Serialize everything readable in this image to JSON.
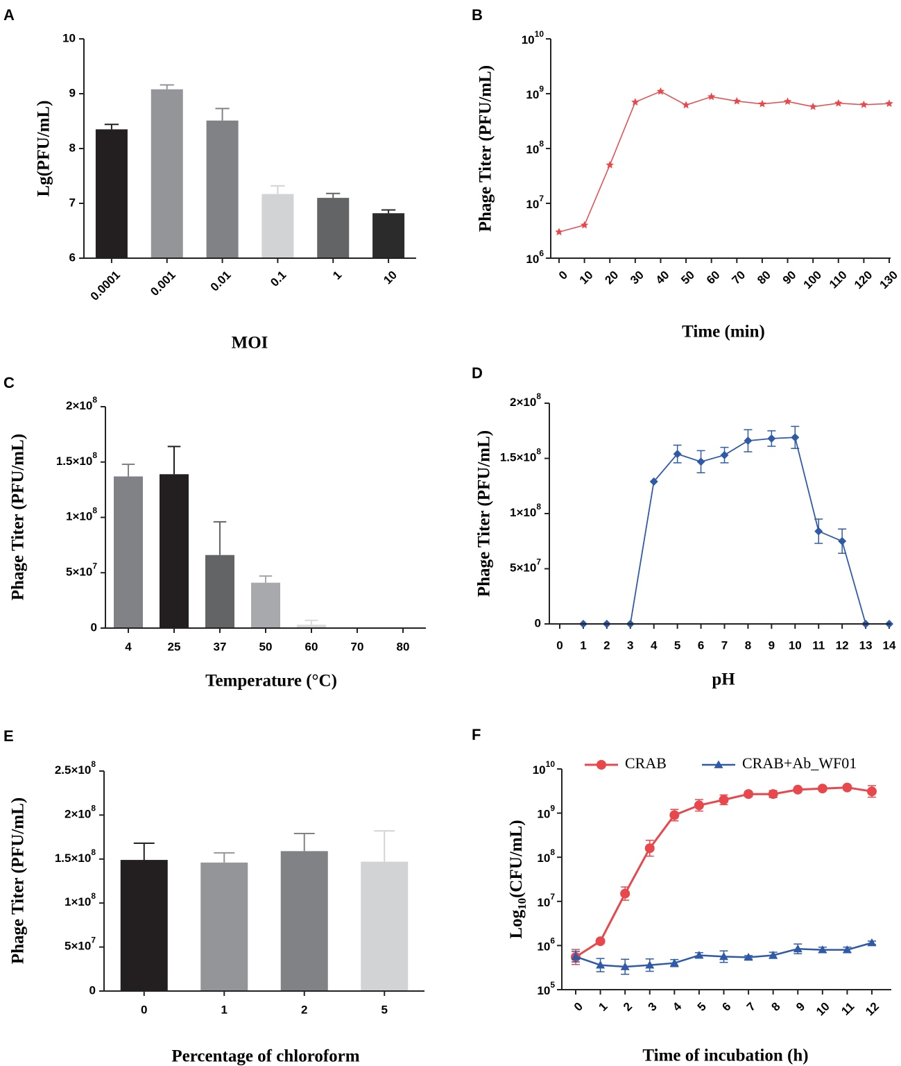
{
  "figure": {
    "panels": [
      {
        "id": "A",
        "chart_data": {
          "type": "bar",
          "title": "",
          "xlabel": "MOI",
          "ylabel": "Lg(PFU/mL)",
          "ylim": [
            6,
            10
          ],
          "yticks": [
            6,
            7,
            8,
            9,
            10
          ],
          "ytick_labels": [
            "6",
            "7",
            "8",
            "9",
            "10"
          ],
          "categories": [
            "0.0001",
            "0.001",
            "0.01",
            "0.1",
            "1",
            "10"
          ],
          "values": [
            8.35,
            9.08,
            8.51,
            7.17,
            7.1,
            6.82
          ],
          "errors": [
            0.09,
            0.08,
            0.22,
            0.15,
            0.08,
            0.06
          ],
          "colors": [
            "#231f20",
            "#939598",
            "#808285",
            "#d1d3d4",
            "#636466",
            "#2b2b2b"
          ]
        }
      },
      {
        "id": "B",
        "chart_data": {
          "type": "line",
          "title": "",
          "xlabel": "Time (min)",
          "ylabel": "Phage Titer (PFU/mL)",
          "yscale": "log",
          "ylim": [
            1000000,
            10000000000
          ],
          "ytick_exponents": [
            6,
            7,
            8,
            9,
            10
          ],
          "x": [
            0,
            10,
            20,
            30,
            40,
            50,
            60,
            70,
            80,
            90,
            100,
            110,
            120,
            130
          ],
          "values": [
            3000000,
            4000000,
            50000000,
            700000000,
            1100000000,
            620000000,
            880000000,
            730000000,
            650000000,
            720000000,
            580000000,
            670000000,
            630000000,
            660000000
          ],
          "color": "#e8474b",
          "marker": "star"
        }
      },
      {
        "id": "C",
        "chart_data": {
          "type": "bar",
          "title": "",
          "xlabel": "Temperature (°C)",
          "ylabel": "Phage Titer (PFU/mL)",
          "ylim": [
            0,
            200000000
          ],
          "yticks": [
            0,
            50000000,
            100000000,
            150000000,
            200000000
          ],
          "ytick_labels": [
            "0",
            "5×10^7",
            "1×10^8",
            "1.5×10^8",
            "2×10^8"
          ],
          "categories": [
            "4",
            "25",
            "37",
            "50",
            "60",
            "70",
            "80"
          ],
          "values": [
            137000000,
            139000000,
            66000000,
            41000000,
            3000000,
            0,
            0
          ],
          "errors": [
            11000000,
            25000000,
            30000000,
            6000000,
            4000000,
            0,
            0
          ],
          "colors": [
            "#808285",
            "#231f20",
            "#636466",
            "#a7a9ac",
            "#d9d9d9",
            "#d9d9d9",
            "#d9d9d9"
          ]
        }
      },
      {
        "id": "D",
        "chart_data": {
          "type": "line",
          "title": "",
          "xlabel": "pH",
          "ylabel": "Phage Titer (PFU/mL)",
          "ylim": [
            0,
            200000000
          ],
          "yticks": [
            0,
            50000000,
            100000000,
            150000000,
            200000000
          ],
          "ytick_labels": [
            "0",
            "5×10^7",
            "1×10^8",
            "1.5×10^8",
            "2×10^8"
          ],
          "xlim": [
            0,
            14
          ],
          "x": [
            1,
            2,
            3,
            4,
            5,
            6,
            7,
            8,
            9,
            10,
            11,
            12,
            13,
            14
          ],
          "values": [
            0,
            0,
            0,
            129000000,
            154000000,
            147000000,
            153000000,
            166000000,
            168000000,
            169000000,
            84000000,
            75000000,
            0,
            0
          ],
          "errors": [
            0,
            0,
            0,
            0,
            8000000,
            10000000,
            7000000,
            10000000,
            7000000,
            10000000,
            11000000,
            11000000,
            0,
            0
          ],
          "color": "#2e5aa8",
          "marker": "diamond"
        }
      },
      {
        "id": "E",
        "chart_data": {
          "type": "bar",
          "title": "",
          "xlabel": "Percentage of chloroform",
          "ylabel": "Phage Titer (PFU/mL)",
          "ylim": [
            0,
            250000000
          ],
          "yticks": [
            0,
            50000000,
            100000000,
            150000000,
            200000000,
            250000000
          ],
          "ytick_labels": [
            "0",
            "5×10^7",
            "1×10^8",
            "1.5×10^8",
            "2×10^8",
            "2.5×10^8"
          ],
          "categories": [
            "0",
            "1",
            "2",
            "5"
          ],
          "values": [
            149000000,
            146000000,
            159000000,
            147000000
          ],
          "errors": [
            19000000,
            11000000,
            20000000,
            35000000
          ],
          "colors": [
            "#231f20",
            "#939598",
            "#808285",
            "#d1d3d4"
          ]
        }
      },
      {
        "id": "F",
        "chart_data": {
          "type": "line",
          "title": "",
          "xlabel": "Time of incubation (h)",
          "ylabel": "Log10(CFU/mL)",
          "yscale": "log",
          "ylim": [
            100000,
            10000000000
          ],
          "ytick_exponents": [
            5,
            6,
            7,
            8,
            9,
            10
          ],
          "x": [
            0,
            1,
            2,
            3,
            4,
            5,
            6,
            7,
            8,
            9,
            10,
            11,
            12
          ],
          "legend_position": "top",
          "series": [
            {
              "name": "CRAB",
              "color": "#e8474b",
              "marker": "circle",
              "values": [
                550000,
                1250000,
                15000000,
                160000000,
                900000000,
                1500000000,
                2000000000,
                2700000000,
                2700000000,
                3400000000,
                3600000000,
                3800000000,
                3100000000
              ],
              "errors_log": [
                0.17,
                0.03,
                0.15,
                0.18,
                0.13,
                0.13,
                0.11,
                0.06,
                0.08,
                0.05,
                0.04,
                0.04,
                0.13
              ]
            },
            {
              "name": "CRAB+Ab_WF01",
              "color": "#2e5aa8",
              "marker": "triangle",
              "values": [
                560000,
                360000,
                330000,
                360000,
                400000,
                600000,
                560000,
                540000,
                600000,
                840000,
                800000,
                800000,
                1150000
              ],
              "errors_log": [
                0.12,
                0.15,
                0.17,
                0.14,
                0.08,
                0.06,
                0.13,
                0.04,
                0.07,
                0.11,
                0.06,
                0.06,
                0.04
              ]
            }
          ]
        }
      }
    ]
  }
}
